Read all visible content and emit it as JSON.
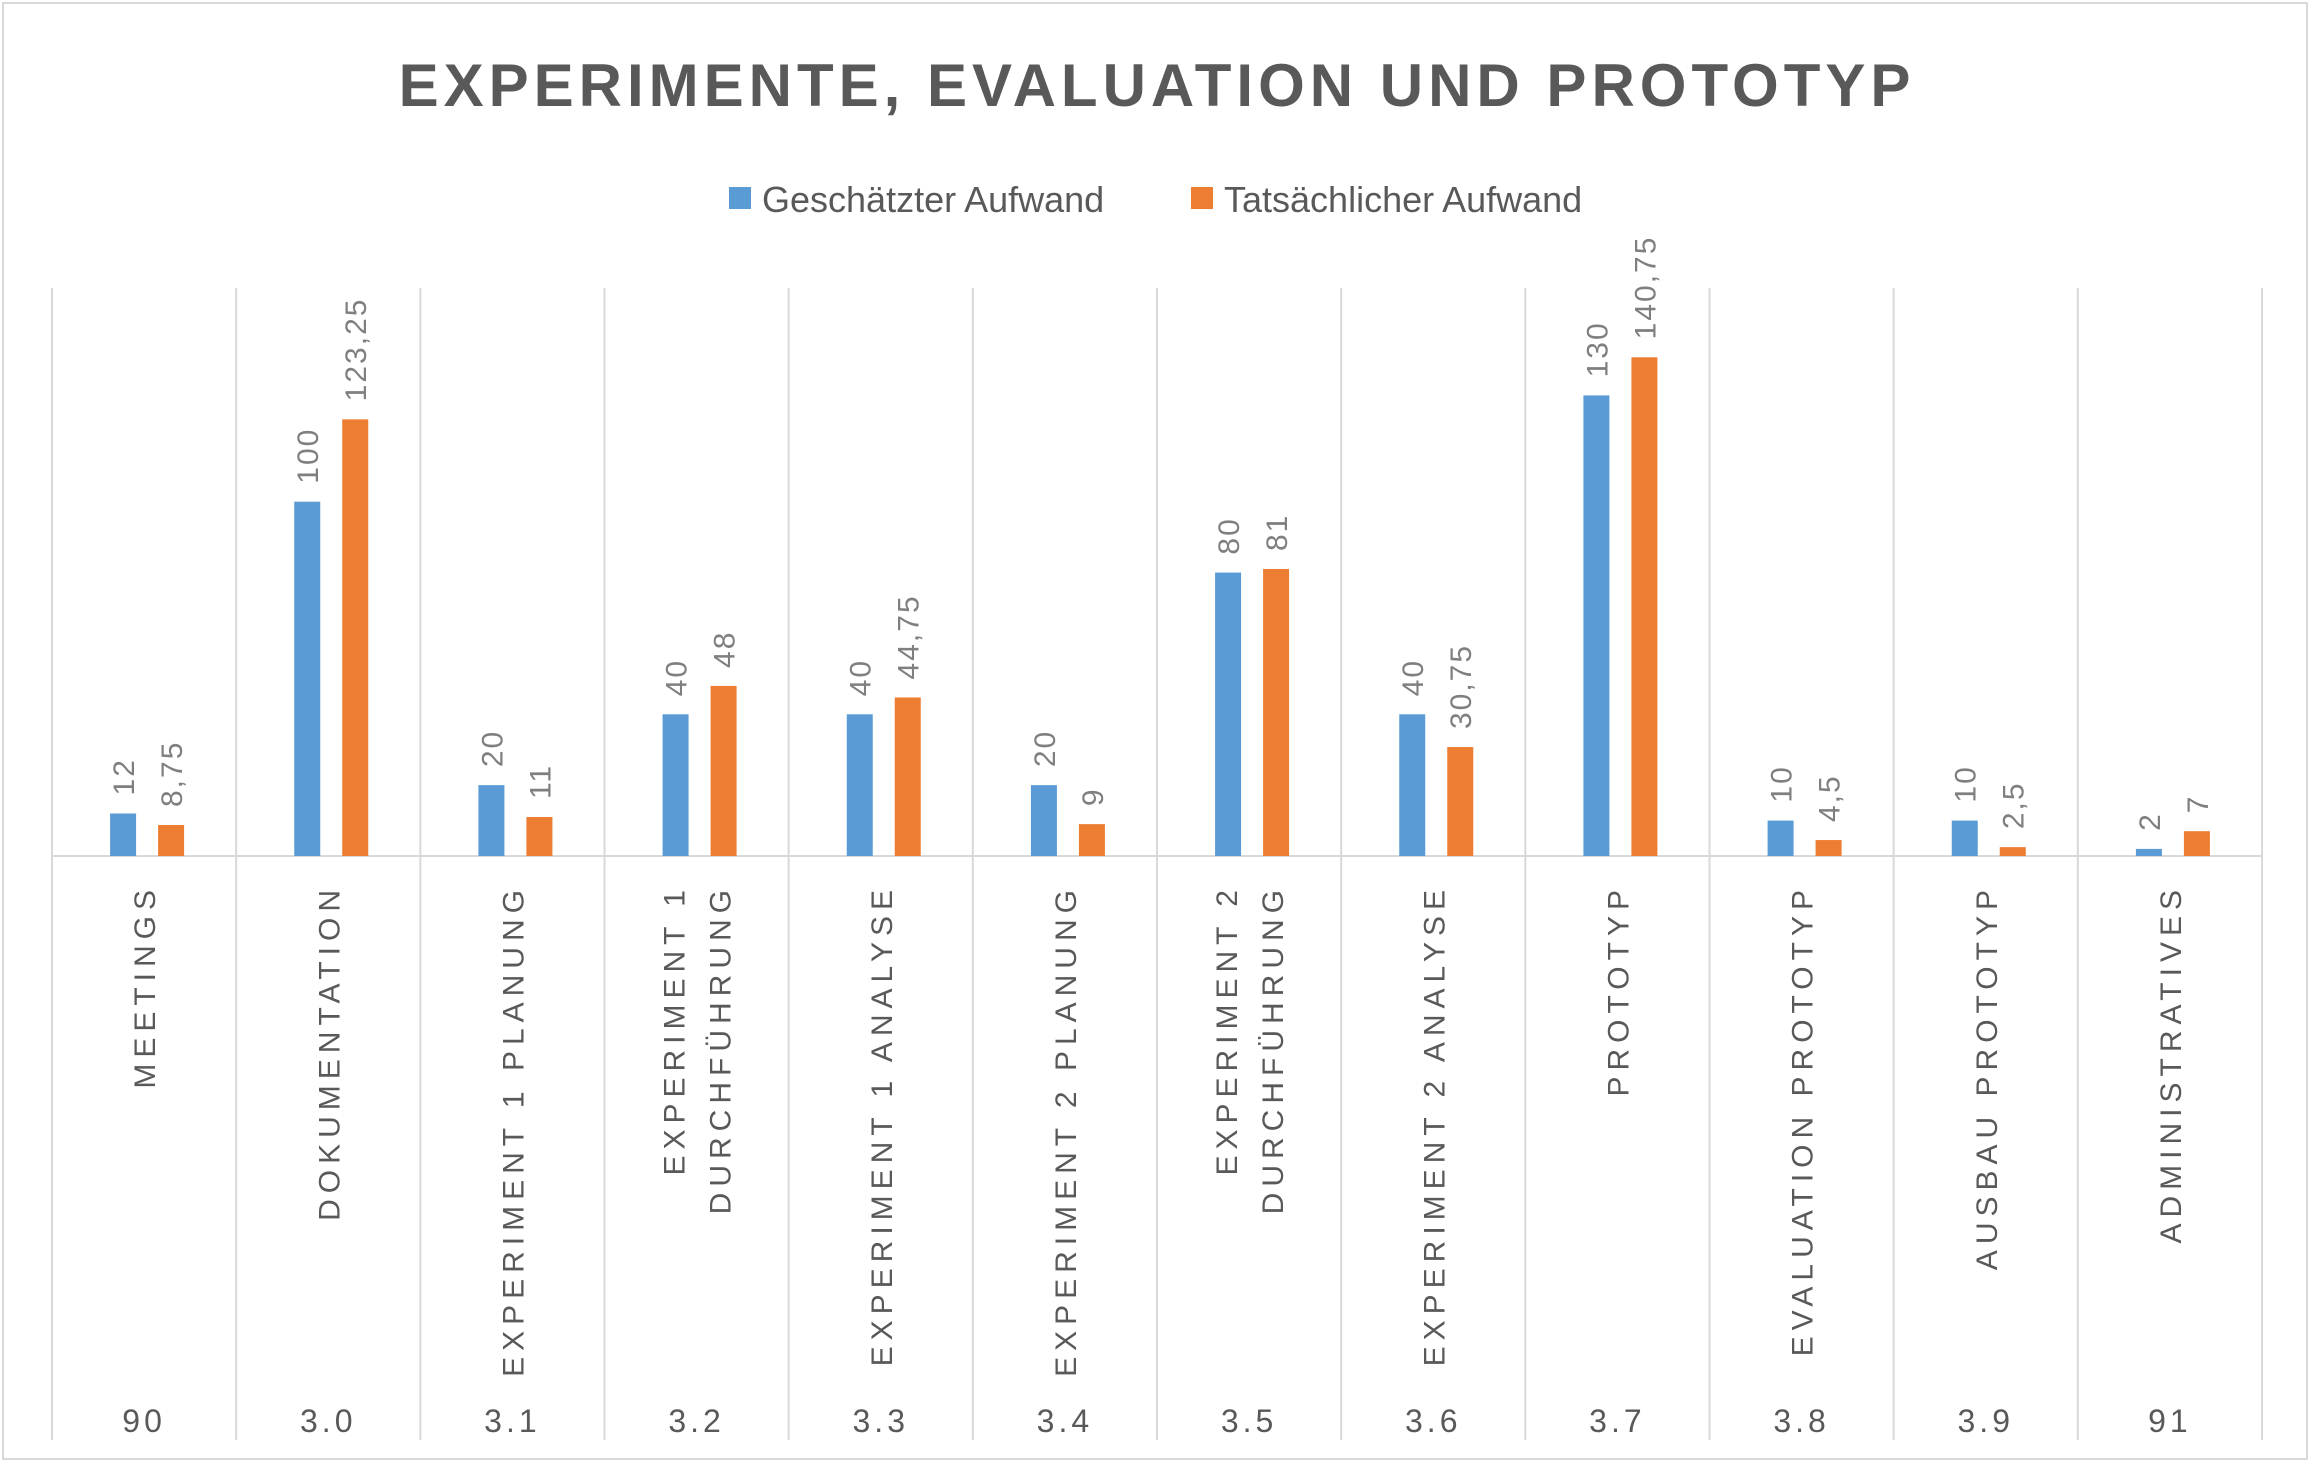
{
  "chart_data": {
    "type": "bar",
    "title": "EXPERIMENTE, EVALUATION UND PROTOTYP",
    "legend_position": "top",
    "grid": false,
    "categories": [
      "MEETINGS",
      "DOKUMENTATION",
      "EXPERIMENT 1 PLANUNG",
      "EXPERIMENT 1 DURCHFÜHRUNG",
      "EXPERIMENT 1 ANALYSE",
      "EXPERIMENT 2 PLANUNG",
      "EXPERIMENT 2 DURCHFÜHRUNG",
      "EXPERIMENT 2 ANALYSE",
      "PROTOTYP",
      "EVALUATION PROTOTYP",
      "AUSBAU PROTOTYP",
      "ADMINISTRATIVES"
    ],
    "category_codes": [
      "90",
      "3.0",
      "3.1",
      "3.2",
      "3.3",
      "3.4",
      "3.5",
      "3.6",
      "3.7",
      "3.8",
      "3.9",
      "91"
    ],
    "series": [
      {
        "name": "Geschätzter Aufwand",
        "color": "#5b9bd5",
        "values": [
          12,
          100,
          20,
          40,
          40,
          20,
          80,
          40,
          130,
          10,
          10,
          2
        ],
        "labels": [
          "12",
          "100",
          "20",
          "40",
          "40",
          "20",
          "80",
          "40",
          "130",
          "10",
          "10",
          "2"
        ]
      },
      {
        "name": "Tatsächlicher Aufwand",
        "color": "#ed7d31",
        "values": [
          8.75,
          123.25,
          11,
          48,
          44.75,
          9,
          81,
          30.75,
          140.75,
          4.5,
          2.5,
          7
        ],
        "labels": [
          "8,75",
          "123,25",
          "11",
          "48",
          "44,75",
          "9",
          "81",
          "30,75",
          "140,75",
          "4,5",
          "2,5",
          "7"
        ]
      }
    ],
    "ylim": [
      0,
      170
    ]
  }
}
